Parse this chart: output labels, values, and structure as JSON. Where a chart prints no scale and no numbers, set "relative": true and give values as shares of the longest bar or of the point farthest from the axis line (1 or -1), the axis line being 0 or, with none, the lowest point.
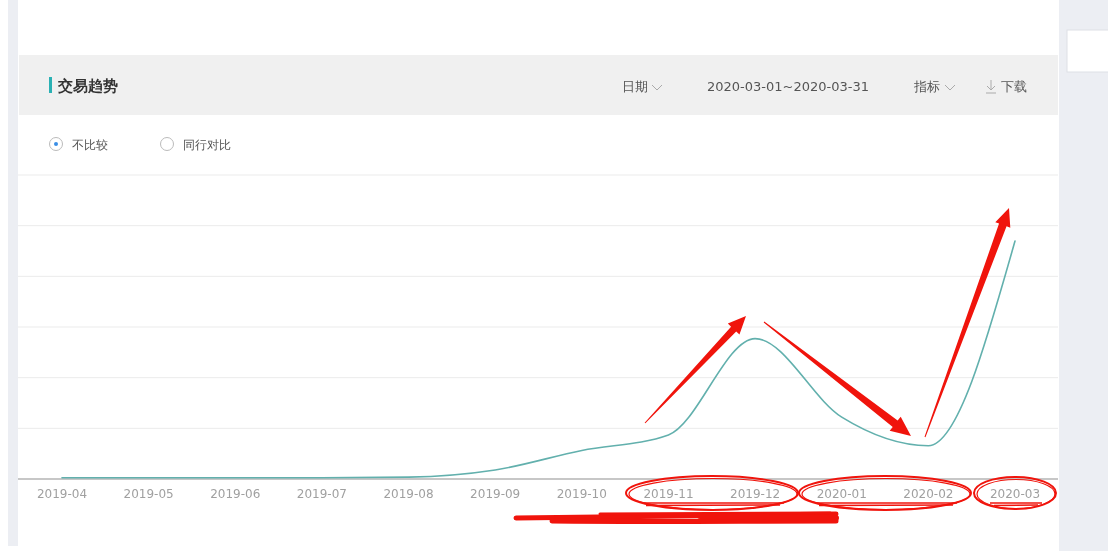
{
  "chart_data": {
    "type": "line",
    "title": "交易趋势",
    "annotations": [
      "日期",
      "2020-03-01~2020-03-31",
      "指标",
      "下载",
      "不比较",
      "同行对比"
    ],
    "categories": [
      "2019-04",
      "2019-05",
      "2019-06",
      "2019-07",
      "2019-08",
      "2019-09",
      "2019-10",
      "2019-11",
      "2019-12",
      "2020-01",
      "2020-02",
      "2020-03"
    ],
    "series": [
      {
        "color": "#62b0ad",
        "values": [
          0.005,
          0.005,
          0.005,
          0.005,
          0.008,
          0.038,
          0.12,
          0.185,
          0.59,
          0.26,
          0.14,
          1
        ]
      }
    ],
    "relative": true,
    "grid": "y"
  }
}
